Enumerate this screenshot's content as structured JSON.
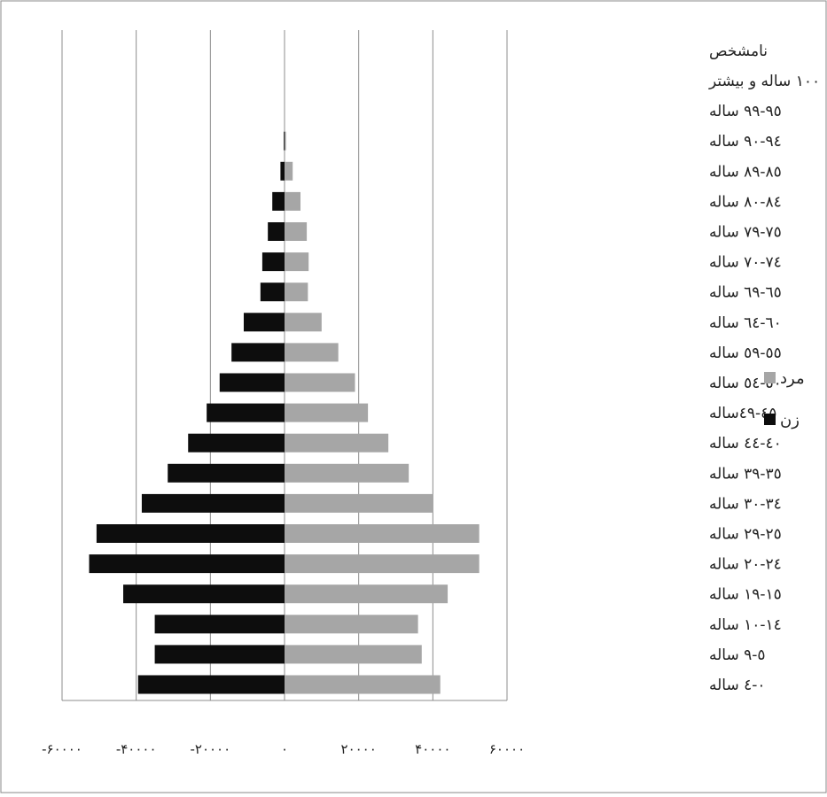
{
  "chart_data": {
    "type": "bar",
    "orientation": "horizontal",
    "subtype": "population-pyramid",
    "categories": [
      "۰-٤ ساله",
      "٥-٩ ساله",
      "۱۰-۱٤ ساله",
      "۱٥-۱۹ ساله",
      "۲۰-۲٤ ساله",
      "۲٥-۲۹ ساله",
      "۳۰-۳٤ ساله",
      "۳٥-۳۹ ساله",
      "٤۰-٤٤ ساله",
      "٤٥-٤۹ساله",
      "٥۰-٥٤ ساله",
      "٥٥-٥۹ ساله",
      "٦۰-٦٤ ساله",
      "٦٥-٦۹ ساله",
      "۷۰-۷٤ ساله",
      "۷٥-۷۹ ساله",
      "۸۰-۸٤ ساله",
      "۸٥-۸۹ ساله",
      "۹۰-۹٤ ساله",
      "۹٥-۹۹ ساله",
      "۱۰۰ ساله و بیشتر",
      "نامشخص"
    ],
    "series": [
      {
        "name": "مرد",
        "color": "#a6a6a6",
        "values": [
          42000,
          37000,
          36000,
          44000,
          52500,
          52500,
          40000,
          33500,
          28000,
          22500,
          19000,
          14500,
          10000,
          6300,
          6500,
          6000,
          4300,
          2200,
          400,
          0,
          0,
          0
        ]
      },
      {
        "name": "زن",
        "color": "#0d0d0d",
        "values": [
          -39500,
          -35000,
          -35000,
          -43500,
          -52700,
          -50700,
          -38500,
          -31500,
          -26000,
          -21000,
          -17500,
          -14300,
          -11000,
          -6500,
          -6000,
          -4500,
          -3300,
          -1100,
          -200,
          0,
          0,
          0
        ]
      }
    ],
    "x_ticks": [
      {
        "value": -60000,
        "label": "-۶۰۰۰۰"
      },
      {
        "value": -40000,
        "label": "-۴۰۰۰۰"
      },
      {
        "value": -20000,
        "label": "-۲۰۰۰۰"
      },
      {
        "value": 0,
        "label": "۰"
      },
      {
        "value": 20000,
        "label": "۲۰۰۰۰"
      },
      {
        "value": 40000,
        "label": "۴۰۰۰۰"
      },
      {
        "value": 60000,
        "label": "۶۰۰۰۰"
      }
    ],
    "xlim": [
      -60000,
      60000
    ],
    "grid": "vertical",
    "legend": {
      "placement": "right",
      "items": [
        {
          "label": "مرد",
          "color": "#a6a6a6"
        },
        {
          "label": "زن",
          "color": "#0d0d0d"
        }
      ]
    },
    "title": "",
    "xlabel": "",
    "ylabel": ""
  }
}
